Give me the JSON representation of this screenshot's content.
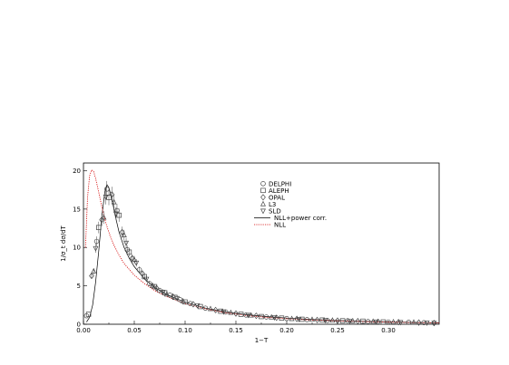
{
  "chart_data": {
    "type": "scatter",
    "title": "",
    "xlabel": "1−T",
    "ylabel": "1/σ_t dσ/dT",
    "xlim": [
      0,
      0.35
    ],
    "ylim": [
      0,
      21
    ],
    "grid": false,
    "legend_position": "top-right (inside)",
    "x_ticks": [
      "0.00",
      "0.05",
      "0.10",
      "0.15",
      "0.20",
      "0.25",
      "0.30"
    ],
    "y_ticks": [
      "0",
      "5",
      "10",
      "15",
      "20"
    ],
    "colors": {
      "axis": "#000000",
      "markers": "#444444",
      "nll_power_corr": "#000000",
      "nll": "#d40000"
    },
    "series": [
      {
        "name": "DELPHI",
        "marker": "circle",
        "points": [
          [
            0.003,
            1.1
          ],
          [
            0.013,
            10.8
          ],
          [
            0.023,
            17.6
          ],
          [
            0.033,
            14.8
          ],
          [
            0.043,
            9.7
          ],
          [
            0.055,
            7.1
          ],
          [
            0.065,
            5.3
          ],
          [
            0.075,
            4.4
          ],
          [
            0.085,
            3.8
          ],
          [
            0.095,
            3.2
          ],
          [
            0.105,
            2.7
          ],
          [
            0.12,
            2.1
          ],
          [
            0.14,
            1.6
          ],
          [
            0.16,
            1.2
          ],
          [
            0.18,
            0.95
          ],
          [
            0.2,
            0.75
          ],
          [
            0.22,
            0.6
          ],
          [
            0.24,
            0.5
          ],
          [
            0.26,
            0.45
          ],
          [
            0.28,
            0.35
          ],
          [
            0.3,
            0.3
          ],
          [
            0.32,
            0.25
          ],
          [
            0.335,
            0.2
          ]
        ]
      },
      {
        "name": "ALEPH",
        "marker": "square",
        "points": [
          [
            0.005,
            1.3
          ],
          [
            0.015,
            12.6
          ],
          [
            0.025,
            16.5
          ],
          [
            0.035,
            14.2
          ],
          [
            0.045,
            9.4
          ],
          [
            0.06,
            6.2
          ],
          [
            0.07,
            4.9
          ],
          [
            0.08,
            4.1
          ],
          [
            0.09,
            3.5
          ],
          [
            0.1,
            2.9
          ],
          [
            0.115,
            2.3
          ],
          [
            0.135,
            1.7
          ],
          [
            0.155,
            1.3
          ],
          [
            0.175,
            1.0
          ],
          [
            0.195,
            0.8
          ],
          [
            0.215,
            0.65
          ],
          [
            0.235,
            0.55
          ],
          [
            0.255,
            0.45
          ],
          [
            0.275,
            0.4
          ],
          [
            0.295,
            0.3
          ]
        ]
      },
      {
        "name": "OPAL",
        "marker": "diamond",
        "points": [
          [
            0.008,
            6.3
          ],
          [
            0.018,
            13.6
          ],
          [
            0.028,
            16.9
          ],
          [
            0.038,
            12.0
          ],
          [
            0.048,
            8.6
          ],
          [
            0.058,
            6.6
          ],
          [
            0.072,
            4.7
          ],
          [
            0.088,
            3.6
          ],
          [
            0.108,
            2.6
          ],
          [
            0.13,
            1.85
          ],
          [
            0.15,
            1.4
          ],
          [
            0.17,
            1.1
          ],
          [
            0.19,
            0.85
          ],
          [
            0.21,
            0.7
          ],
          [
            0.23,
            0.55
          ],
          [
            0.25,
            0.47
          ],
          [
            0.27,
            0.4
          ],
          [
            0.29,
            0.32
          ],
          [
            0.31,
            0.27
          ],
          [
            0.33,
            0.22
          ],
          [
            0.345,
            0.15
          ]
        ]
      },
      {
        "name": "L3",
        "marker": "triangle-up",
        "points": [
          [
            0.01,
            6.9
          ],
          [
            0.02,
            13.9
          ],
          [
            0.03,
            15.9
          ],
          [
            0.04,
            11.6
          ],
          [
            0.05,
            8.4
          ],
          [
            0.068,
            5.0
          ],
          [
            0.082,
            3.9
          ],
          [
            0.098,
            3.0
          ],
          [
            0.125,
            2.0
          ],
          [
            0.145,
            1.5
          ],
          [
            0.165,
            1.15
          ],
          [
            0.185,
            0.9
          ],
          [
            0.205,
            0.7
          ],
          [
            0.225,
            0.6
          ],
          [
            0.245,
            0.5
          ],
          [
            0.265,
            0.42
          ],
          [
            0.285,
            0.35
          ],
          [
            0.305,
            0.29
          ],
          [
            0.325,
            0.24
          ]
        ]
      },
      {
        "name": "SLD",
        "marker": "triangle-down",
        "points": [
          [
            0.012,
            9.9
          ],
          [
            0.022,
            16.6
          ],
          [
            0.032,
            14.4
          ],
          [
            0.042,
            10.6
          ],
          [
            0.052,
            8.0
          ],
          [
            0.062,
            5.9
          ],
          [
            0.078,
            4.2
          ],
          [
            0.092,
            3.4
          ],
          [
            0.112,
            2.45
          ],
          [
            0.138,
            1.65
          ],
          [
            0.162,
            1.2
          ],
          [
            0.188,
            0.9
          ],
          [
            0.212,
            0.68
          ],
          [
            0.238,
            0.52
          ],
          [
            0.262,
            0.43
          ],
          [
            0.288,
            0.33
          ],
          [
            0.312,
            0.26
          ],
          [
            0.338,
            0.2
          ],
          [
            0.345,
            0.18
          ]
        ]
      },
      {
        "name": "NLL+power corr.",
        "line": "solid",
        "points": [
          [
            0.003,
            0.3
          ],
          [
            0.006,
            0.9
          ],
          [
            0.009,
            2.5
          ],
          [
            0.012,
            5.5
          ],
          [
            0.015,
            9.5
          ],
          [
            0.018,
            14.0
          ],
          [
            0.021,
            17.2
          ],
          [
            0.023,
            18.2
          ],
          [
            0.025,
            17.8
          ],
          [
            0.028,
            16.3
          ],
          [
            0.031,
            14.3
          ],
          [
            0.035,
            12.0
          ],
          [
            0.04,
            10.0
          ],
          [
            0.045,
            8.6
          ],
          [
            0.05,
            7.5
          ],
          [
            0.06,
            5.9
          ],
          [
            0.07,
            4.8
          ],
          [
            0.08,
            4.0
          ],
          [
            0.09,
            3.4
          ],
          [
            0.1,
            2.9
          ],
          [
            0.12,
            2.1
          ],
          [
            0.14,
            1.6
          ],
          [
            0.16,
            1.25
          ],
          [
            0.18,
            1.0
          ],
          [
            0.2,
            0.8
          ],
          [
            0.22,
            0.65
          ],
          [
            0.24,
            0.53
          ],
          [
            0.26,
            0.44
          ],
          [
            0.28,
            0.36
          ],
          [
            0.3,
            0.3
          ],
          [
            0.32,
            0.25
          ],
          [
            0.34,
            0.2
          ],
          [
            0.35,
            0.18
          ]
        ]
      },
      {
        "name": "NLL",
        "line": "dotted",
        "points": [
          [
            0.002,
            10.0
          ],
          [
            0.004,
            16.5
          ],
          [
            0.006,
            19.3
          ],
          [
            0.008,
            20.1
          ],
          [
            0.01,
            19.9
          ],
          [
            0.012,
            19.0
          ],
          [
            0.015,
            17.2
          ],
          [
            0.018,
            15.3
          ],
          [
            0.022,
            13.2
          ],
          [
            0.026,
            11.6
          ],
          [
            0.03,
            10.3
          ],
          [
            0.035,
            9.0
          ],
          [
            0.04,
            7.9
          ],
          [
            0.05,
            6.4
          ],
          [
            0.06,
            5.3
          ],
          [
            0.07,
            4.4
          ],
          [
            0.08,
            3.7
          ],
          [
            0.09,
            3.2
          ],
          [
            0.1,
            2.7
          ],
          [
            0.12,
            2.0
          ],
          [
            0.14,
            1.5
          ],
          [
            0.16,
            1.15
          ],
          [
            0.18,
            0.9
          ],
          [
            0.2,
            0.72
          ],
          [
            0.22,
            0.58
          ],
          [
            0.24,
            0.48
          ],
          [
            0.26,
            0.4
          ],
          [
            0.28,
            0.33
          ],
          [
            0.3,
            0.27
          ],
          [
            0.32,
            0.23
          ],
          [
            0.34,
            0.19
          ],
          [
            0.35,
            0.17
          ]
        ]
      }
    ]
  }
}
